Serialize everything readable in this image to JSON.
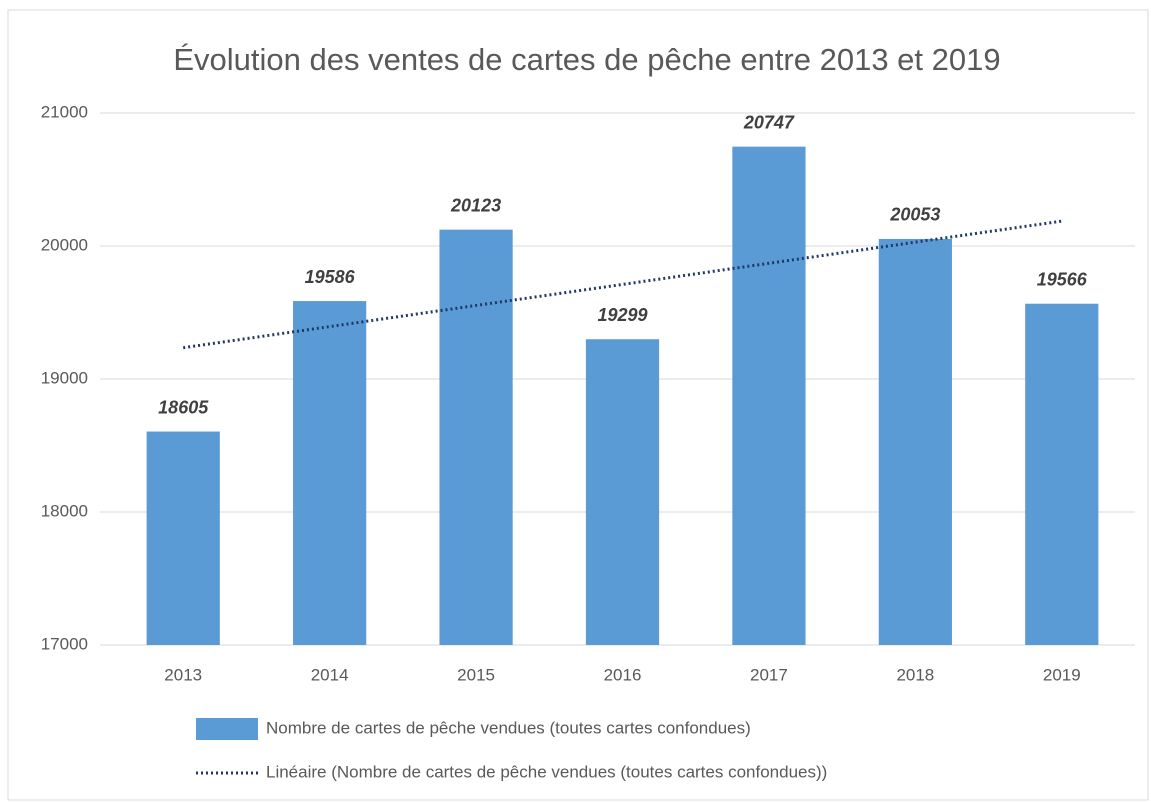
{
  "chart_data": {
    "type": "bar",
    "title": "Évolution des ventes de cartes de pêche entre 2013 et 2019",
    "categories": [
      "2013",
      "2014",
      "2015",
      "2016",
      "2017",
      "2018",
      "2019"
    ],
    "series": [
      {
        "name": "Nombre de cartes de pêche vendues (toutes cartes confondues)",
        "type": "bar",
        "color": "#5b9bd5",
        "values": [
          18605,
          19586,
          20123,
          19299,
          20747,
          20053,
          19566
        ]
      },
      {
        "name": "Linéaire (Nombre de cartes de pêche vendues (toutes cartes confondues))",
        "type": "line",
        "color": "#1f3864",
        "values": [
          19235,
          19394,
          19553,
          19711,
          19870,
          20029,
          20187
        ]
      }
    ],
    "ylim": [
      17000,
      21000
    ],
    "yticks": [
      17000,
      18000,
      19000,
      20000,
      21000
    ],
    "grid": true,
    "legend": "bottom"
  }
}
